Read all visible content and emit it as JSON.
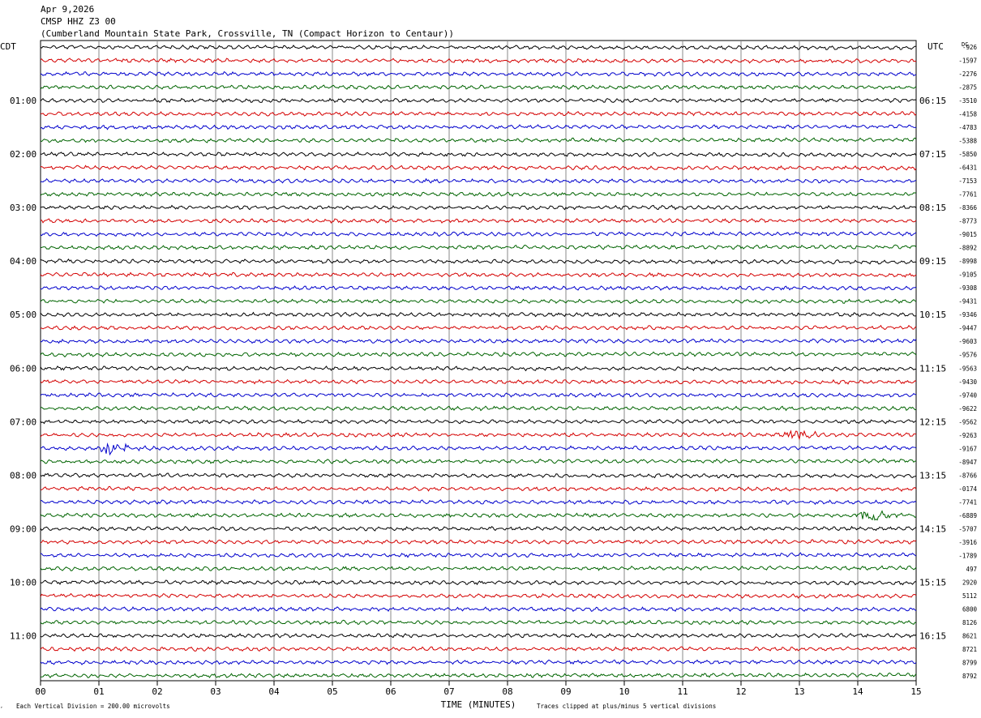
{
  "header": {
    "date": "Apr 9,2026",
    "station": "CMSP HHZ Z3 00",
    "location": "(Cumberland Mountain State Park, Crossville, TN (Compact Horizon to Centaur))"
  },
  "chart_data": {
    "type": "line",
    "title": "Apr 9,2026",
    "left_axis_label": "CDT",
    "right_axis_label": "UTC",
    "dc_label": "DC",
    "xlabel": "TIME (MINUTES)",
    "xlim": [
      0,
      15
    ],
    "x_ticks": [
      "00",
      "01",
      "02",
      "03",
      "04",
      "05",
      "06",
      "07",
      "08",
      "09",
      "10",
      "11",
      "12",
      "13",
      "14",
      "15"
    ],
    "grid": true,
    "trace_colors": [
      "#000000",
      "#d40000",
      "#0000cc",
      "#006400"
    ],
    "left_hour_labels": [
      "01:00",
      "02:00",
      "03:00",
      "04:00",
      "05:00",
      "06:00",
      "07:00",
      "08:00",
      "09:00",
      "10:00",
      "11:00"
    ],
    "right_hour_labels": [
      "06:15",
      "07:15",
      "08:15",
      "09:15",
      "10:15",
      "11:15",
      "12:15",
      "13:15",
      "14:15",
      "15:15",
      "16:15"
    ],
    "dc_offsets": [
      "-926",
      "-1597",
      "-2276",
      "-2875",
      "-3510",
      "-4158",
      "-4783",
      "-5388",
      "-5850",
      "-6431",
      "-7153",
      "-7761",
      "-8366",
      "-8773",
      "-9015",
      "-8892",
      "-8998",
      "-9105",
      "-9308",
      "-9431",
      "-9346",
      "-9447",
      "-9603",
      "-9576",
      "-9563",
      "-9430",
      "-9740",
      "-9622",
      "-9562",
      "-9263",
      "-9167",
      "-8947",
      "-8766",
      "-0174",
      "-7741",
      "-6889",
      "-5707",
      "-3916",
      "-1789",
      "497",
      "2920",
      "5112",
      "6800",
      "8126",
      "8621",
      "8721",
      "8799",
      "8792"
    ],
    "events": [
      {
        "trace": 30,
        "minute": 1.2
      },
      {
        "trace": 29,
        "minute": 12.9
      },
      {
        "trace": 35,
        "minute": 14.2
      }
    ],
    "footer_left": "Each Vertical Division =  200.00 microvolts",
    "footer_right": "Traces clipped at plus/minus 5 vertical divisions"
  }
}
